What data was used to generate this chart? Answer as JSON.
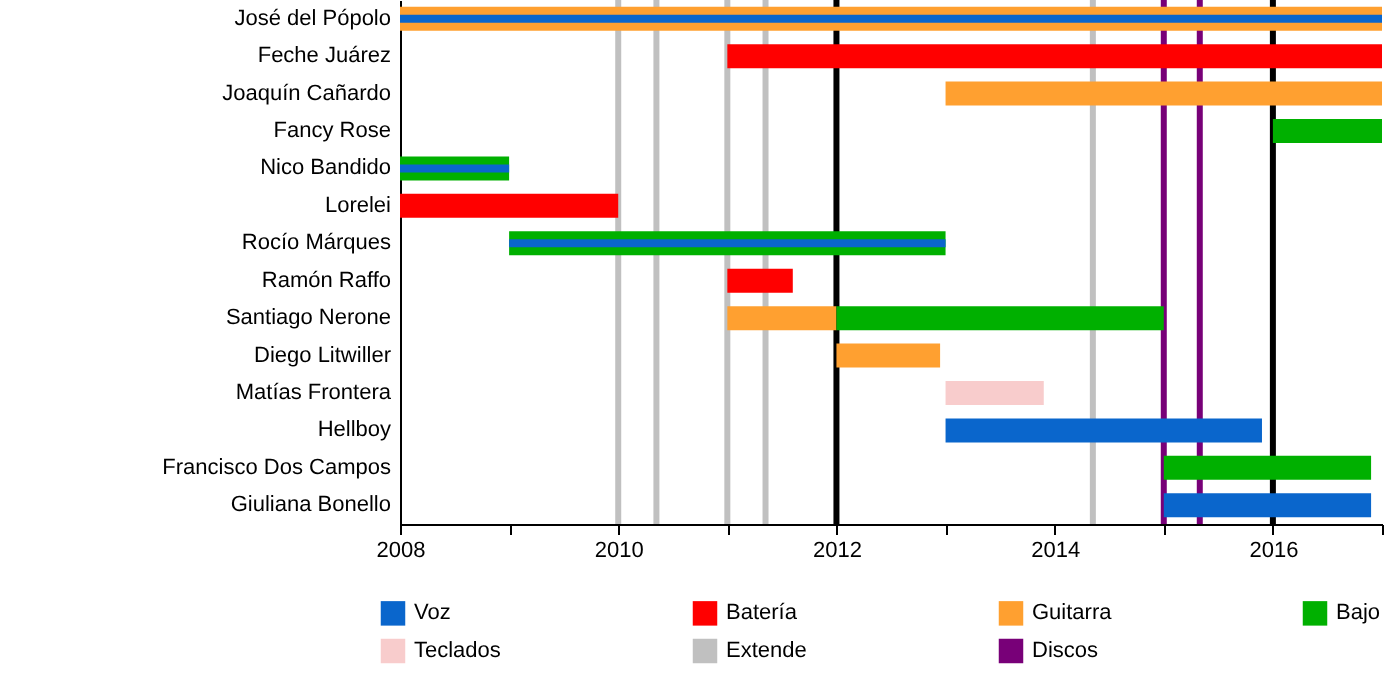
{
  "chart_data": {
    "type": "bar",
    "orientation": "horizontal",
    "categories": [
      "José del Pópolo",
      "Feche Juárez",
      "Joaquín Cañardo",
      "Fancy Rose",
      "Nico Bandido",
      "Lorelei",
      "Rocío Márques",
      "Ramón Raffo",
      "Santiago Nerone",
      "Diego Litwiller",
      "Matías Frontera",
      "Hellboy",
      "Francisco Dos Campos",
      "Giuliana Bonello"
    ],
    "series": [
      {
        "name": "Voz",
        "color": "#0a66cc",
        "base": [
          2008,
          null,
          null,
          null,
          2008,
          null,
          2009,
          null,
          null,
          null,
          null,
          2013,
          null,
          2015
        ],
        "values": [
          9,
          null,
          null,
          null,
          1,
          null,
          4,
          null,
          null,
          null,
          null,
          2.9,
          null,
          1.9
        ]
      },
      {
        "name": "Batería",
        "color": "#ff0000",
        "base": [
          null,
          2011,
          null,
          null,
          null,
          2008,
          null,
          2011,
          null,
          null,
          null,
          null,
          null,
          null
        ],
        "values": [
          null,
          6,
          null,
          null,
          null,
          2,
          null,
          0.6,
          null,
          null,
          null,
          null,
          null,
          null
        ]
      },
      {
        "name": "Guitarra",
        "color": "#ffa030",
        "base": [
          2008,
          null,
          2013,
          null,
          null,
          null,
          null,
          null,
          2011,
          2012,
          null,
          null,
          null,
          null
        ],
        "values": [
          9,
          null,
          4,
          null,
          null,
          null,
          null,
          null,
          1,
          0.95,
          null,
          null,
          null,
          null
        ]
      },
      {
        "name": "Bajo",
        "color": "#00b000",
        "base": [
          null,
          null,
          null,
          2016,
          2008,
          null,
          2009,
          null,
          2012,
          null,
          null,
          null,
          2015,
          null
        ],
        "values": [
          null,
          null,
          null,
          1,
          1,
          null,
          4,
          null,
          3,
          null,
          null,
          null,
          1.9,
          null
        ]
      },
      {
        "name": "Teclados",
        "color": "#f8cccc",
        "base": [
          null,
          null,
          null,
          null,
          null,
          null,
          null,
          null,
          null,
          null,
          2013,
          null,
          null,
          null
        ],
        "values": [
          null,
          null,
          null,
          null,
          null,
          null,
          null,
          null,
          null,
          null,
          0.9,
          null,
          null,
          null
        ]
      }
    ],
    "xlim": [
      2008,
      2017
    ],
    "xticks": [
      2008,
      {
        "value": 2009,
        "label": null
      },
      2010,
      {
        "value": 2011,
        "label": null
      },
      2012,
      {
        "value": 2013,
        "label": null
      },
      2014,
      {
        "value": 2015,
        "label": null
      },
      2016,
      {
        "value": 2017,
        "label": null
      }
    ],
    "ref_lines": [
      {
        "axis": "x",
        "value": 2010,
        "label": "Extende",
        "color": "#c0c0c0"
      },
      {
        "axis": "x",
        "value": 2010.35,
        "color": "#c0c0c0"
      },
      {
        "axis": "x",
        "value": 2011,
        "color": "#c0c0c0"
      },
      {
        "axis": "x",
        "value": 2011.35,
        "color": "#c0c0c0"
      },
      {
        "axis": "x",
        "value": 2014.35,
        "color": "#c0c0c0"
      },
      {
        "axis": "x",
        "value": 2012,
        "color": "#000000"
      },
      {
        "axis": "x",
        "value": 2016,
        "color": "#000000"
      },
      {
        "axis": "x",
        "value": 2015,
        "label": "Discos",
        "color": "#780078"
      },
      {
        "axis": "x",
        "value": 2015.33,
        "color": "#780078"
      }
    ],
    "legend": "bottom",
    "grid": false
  }
}
